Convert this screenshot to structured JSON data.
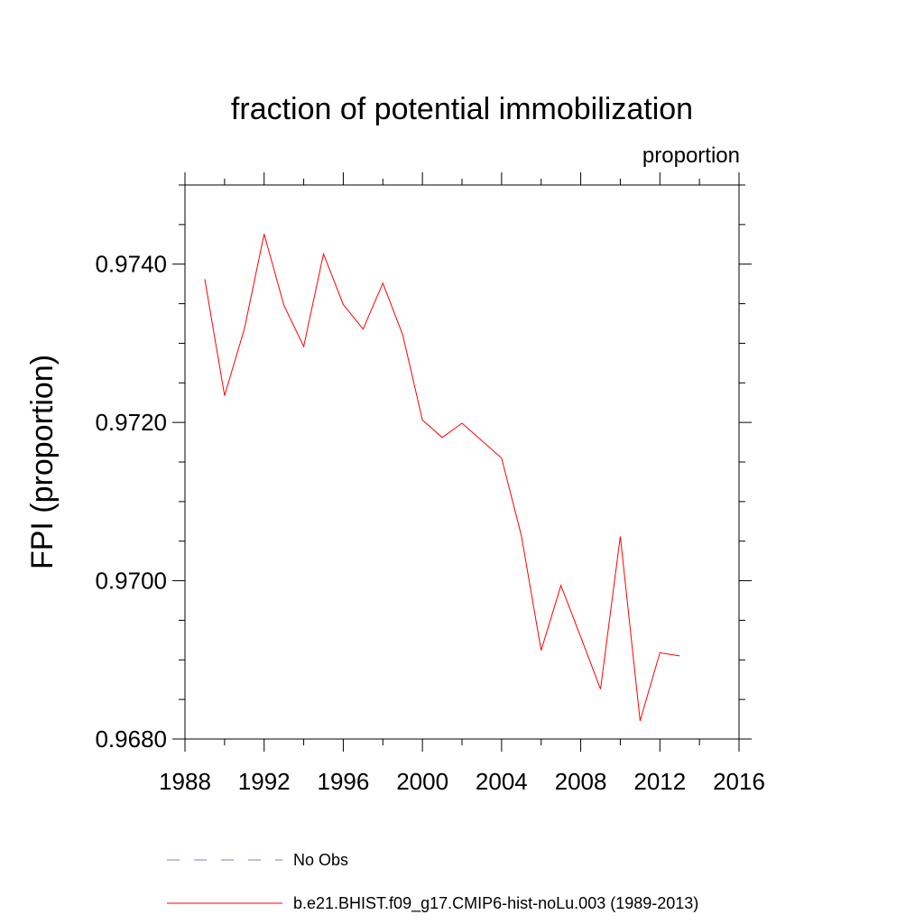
{
  "chart_data": {
    "type": "line",
    "title": "fraction of potential immobilization",
    "units_label": "proportion",
    "xlabel": "",
    "ylabel": "FPI  (proportion)",
    "xlim": [
      1988,
      2016
    ],
    "ylim": [
      0.968,
      0.975
    ],
    "x_ticks": [
      1988,
      1992,
      1996,
      2000,
      2004,
      2008,
      2012,
      2016
    ],
    "x_tick_labels": [
      "1988",
      "1992",
      "1996",
      "2000",
      "2004",
      "2008",
      "2012",
      "2016"
    ],
    "y_ticks": [
      0.968,
      0.97,
      0.972,
      0.974
    ],
    "y_tick_labels": [
      "0.9680",
      "0.9700",
      "0.9720",
      "0.9740"
    ],
    "grid": false,
    "series": [
      {
        "name": "b.e21.BHIST.f09_g17.CMIP6-hist-noLu.003 (1989-2013)",
        "color": "#ff0000",
        "x": [
          1989,
          1990,
          1991,
          1992,
          1993,
          1994,
          1995,
          1996,
          1997,
          1998,
          1999,
          2000,
          2001,
          2002,
          2003,
          2004,
          2005,
          2006,
          2007,
          2008,
          2009,
          2010,
          2011,
          2012,
          2013
        ],
        "values": [
          0.97381,
          0.97234,
          0.97318,
          0.97438,
          0.97348,
          0.97296,
          0.97413,
          0.97349,
          0.97318,
          0.97376,
          0.97311,
          0.97203,
          0.97181,
          0.97199,
          0.97177,
          0.97155,
          0.97057,
          0.96912,
          0.96994,
          0.96929,
          0.96863,
          0.97056,
          0.96823,
          0.96909,
          0.96905
        ]
      }
    ],
    "legend": {
      "placement": "bottom",
      "entries": [
        {
          "label": "No Obs",
          "color": "#7b7bd6",
          "style": "dashed"
        },
        {
          "label": "b.e21.BHIST.f09_g17.CMIP6-hist-noLu.003 (1989-2013)",
          "color": "#ff0000",
          "style": "solid"
        }
      ]
    }
  }
}
